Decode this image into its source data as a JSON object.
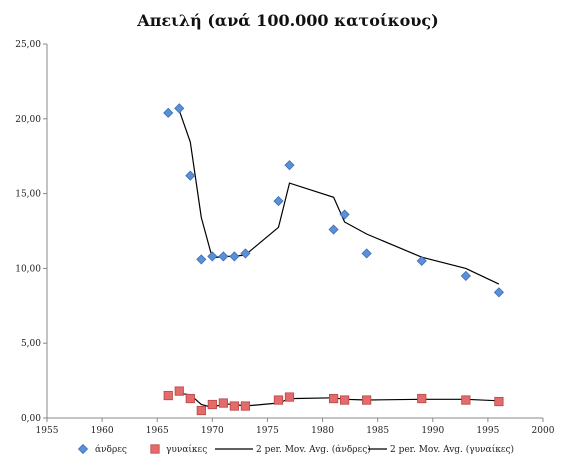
{
  "chart_data": {
    "type": "scatter",
    "title": "Απειλή (ανά 100.000 κατοίκους)",
    "xlim": [
      1955,
      2000
    ],
    "ylim": [
      0,
      25
    ],
    "x_ticks": [
      "1955",
      "1960",
      "1965",
      "1970",
      "1975",
      "1980",
      "1985",
      "1990",
      "1995",
      "2000"
    ],
    "y_ticks": [
      "0,00",
      "5,00",
      "10,00",
      "15,00",
      "20,00",
      "25,00"
    ],
    "grid": false,
    "legend_position": "bottom",
    "series": [
      {
        "name": "άνδρες",
        "marker": "diamond",
        "color": "#5b8fd6",
        "points": [
          [
            1966,
            20.4
          ],
          [
            1967,
            20.7
          ],
          [
            1968,
            16.2
          ],
          [
            1969,
            10.6
          ],
          [
            1970,
            10.8
          ],
          [
            1971,
            10.8
          ],
          [
            1972,
            10.8
          ],
          [
            1973,
            11.0
          ],
          [
            1976,
            14.5
          ],
          [
            1977,
            16.9
          ],
          [
            1981,
            12.6
          ],
          [
            1982,
            13.6
          ],
          [
            1984,
            11.0
          ],
          [
            1989,
            10.5
          ],
          [
            1993,
            9.5
          ],
          [
            1996,
            8.4
          ]
        ]
      },
      {
        "name": "γυναίκες",
        "marker": "square",
        "color": "#e36b6b",
        "points": [
          [
            1966,
            1.5
          ],
          [
            1967,
            1.8
          ],
          [
            1968,
            1.3
          ],
          [
            1969,
            0.5
          ],
          [
            1970,
            0.9
          ],
          [
            1971,
            1.0
          ],
          [
            1972,
            0.8
          ],
          [
            1973,
            0.8
          ],
          [
            1976,
            1.2
          ],
          [
            1977,
            1.4
          ],
          [
            1981,
            1.3
          ],
          [
            1982,
            1.2
          ],
          [
            1984,
            1.2
          ],
          [
            1989,
            1.3
          ],
          [
            1993,
            1.2
          ],
          [
            1996,
            1.1
          ]
        ]
      },
      {
        "name": "2 per. Mov. Avg. (άνδρες)",
        "type": "line",
        "color": "#000000",
        "points": [
          [
            1967,
            20.55
          ],
          [
            1968,
            18.45
          ],
          [
            1969,
            13.4
          ],
          [
            1970,
            10.7
          ],
          [
            1971,
            10.8
          ],
          [
            1972,
            10.8
          ],
          [
            1973,
            10.9
          ],
          [
            1976,
            12.75
          ],
          [
            1977,
            15.7
          ],
          [
            1981,
            14.75
          ],
          [
            1982,
            13.1
          ],
          [
            1984,
            12.3
          ],
          [
            1989,
            10.75
          ],
          [
            1993,
            10.0
          ],
          [
            1996,
            8.95
          ]
        ]
      },
      {
        "name": "2 per. Mov. Avg. (γυναίκες)",
        "type": "line",
        "color": "#000000",
        "points": [
          [
            1967,
            1.65
          ],
          [
            1968,
            1.55
          ],
          [
            1969,
            0.9
          ],
          [
            1970,
            0.7
          ],
          [
            1971,
            0.95
          ],
          [
            1972,
            0.9
          ],
          [
            1973,
            0.8
          ],
          [
            1976,
            1.0
          ],
          [
            1977,
            1.3
          ],
          [
            1981,
            1.35
          ],
          [
            1982,
            1.25
          ],
          [
            1984,
            1.2
          ],
          [
            1989,
            1.25
          ],
          [
            1993,
            1.25
          ],
          [
            1996,
            1.15
          ]
        ]
      }
    ]
  }
}
